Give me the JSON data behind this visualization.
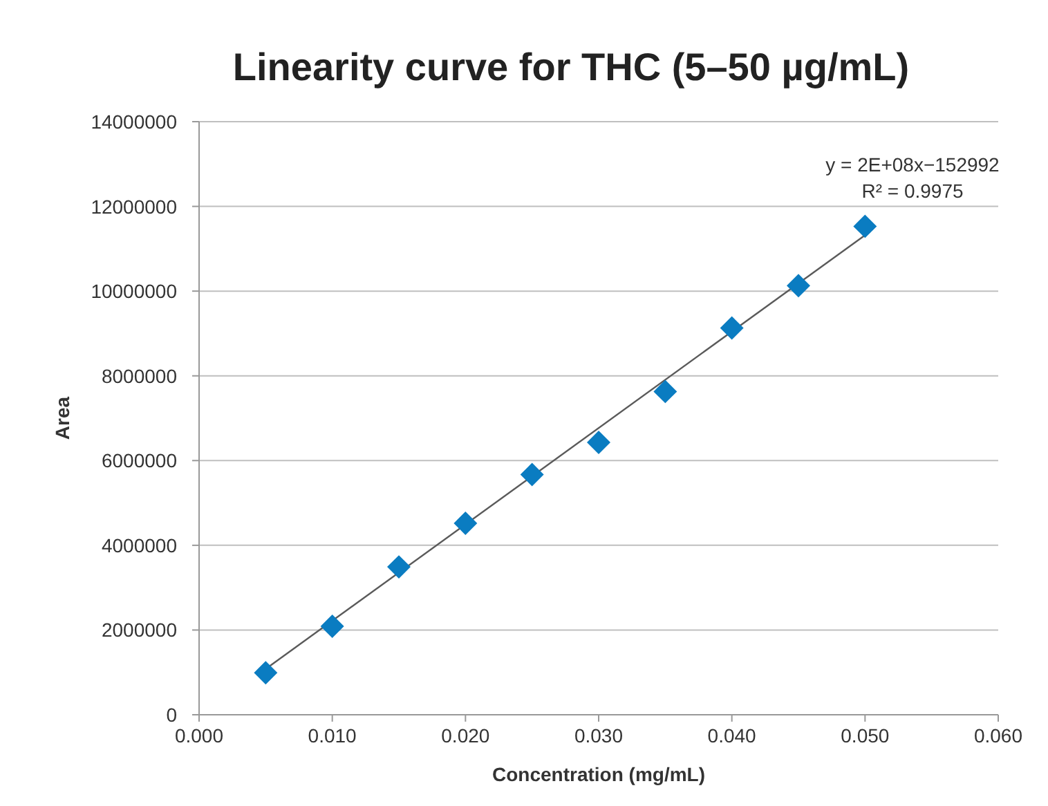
{
  "chart_data": {
    "type": "scatter",
    "title": "Linearity curve for THC (5–50 µg/mL)",
    "xlabel": "Concentration (mg/mL)",
    "ylabel": "Area",
    "series": [
      {
        "color": "#0a7cc1",
        "marker": "diamond",
        "x": [
          0.005,
          0.01,
          0.015,
          0.02,
          0.025,
          0.03,
          0.035,
          0.04,
          0.045,
          0.05
        ],
        "values": [
          990000,
          2090000,
          3490000,
          4520000,
          5670000,
          6430000,
          7630000,
          9130000,
          10130000,
          11530000
        ]
      },
      {
        "type": "line",
        "color": "#5a5a5a",
        "marker": "none",
        "x": [
          0.005,
          0.05
        ],
        "values": [
          1080000,
          11320000
        ]
      }
    ],
    "annotations": [
      "y = 2E+08x−152992",
      "R² = 0.9975"
    ],
    "xlim": [
      0,
      0.06
    ],
    "xticks": [
      {
        "value": 0,
        "label": "0.000"
      },
      {
        "value": 0.01,
        "label": "0.010"
      },
      {
        "value": 0.02,
        "label": "0.020"
      },
      {
        "value": 0.03,
        "label": "0.030"
      },
      {
        "value": 0.04,
        "label": "0.040"
      },
      {
        "value": 0.05,
        "label": "0.050"
      },
      {
        "value": 0.06,
        "label": "0.060"
      }
    ],
    "ylim": [
      0,
      14000000
    ],
    "yticks": [
      0,
      2000000,
      4000000,
      6000000,
      8000000,
      10000000,
      12000000,
      14000000
    ],
    "grid": "y"
  }
}
